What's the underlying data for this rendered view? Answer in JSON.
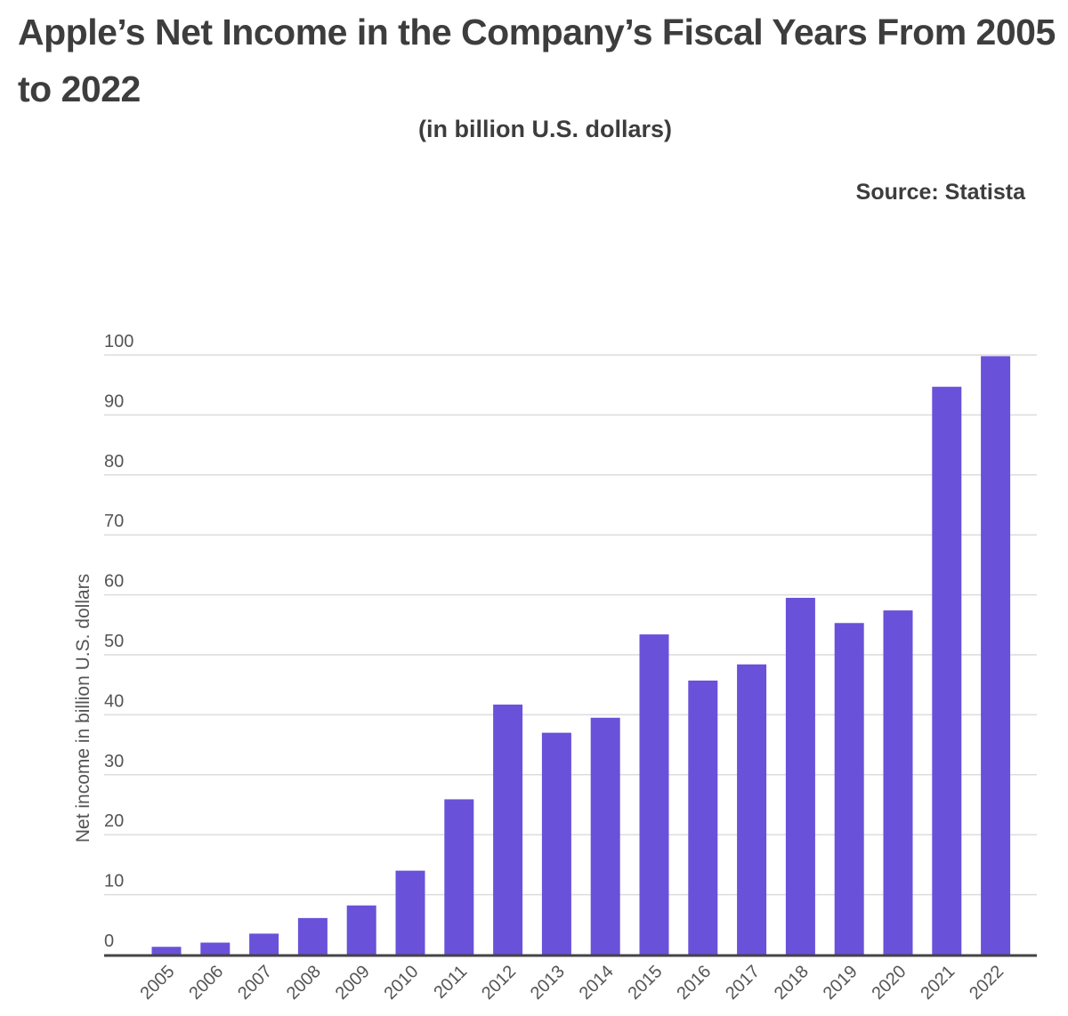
{
  "chart_data": {
    "type": "bar",
    "title": "Apple’s Net Income in the Company’s Fiscal Years From 2005 to 2022",
    "subtitle": "(in billion U.S. dollars)",
    "source": "Source: Statista",
    "xlabel": "",
    "ylabel": "Net income in billion U.S. dollars",
    "ylim": [
      0,
      100
    ],
    "yticks": [
      0,
      10,
      20,
      30,
      40,
      50,
      60,
      70,
      80,
      90,
      100
    ],
    "grid": true,
    "bar_color": "#6a51d9",
    "categories": [
      "2005",
      "2006",
      "2007",
      "2008",
      "2009",
      "2010",
      "2011",
      "2012",
      "2013",
      "2014",
      "2015",
      "2016",
      "2017",
      "2018",
      "2019",
      "2020",
      "2021",
      "2022"
    ],
    "values": [
      1.3,
      2.0,
      3.5,
      6.1,
      8.2,
      14.0,
      25.9,
      41.7,
      37.0,
      39.5,
      53.4,
      45.7,
      48.4,
      59.5,
      55.3,
      57.4,
      94.7,
      99.8
    ]
  }
}
